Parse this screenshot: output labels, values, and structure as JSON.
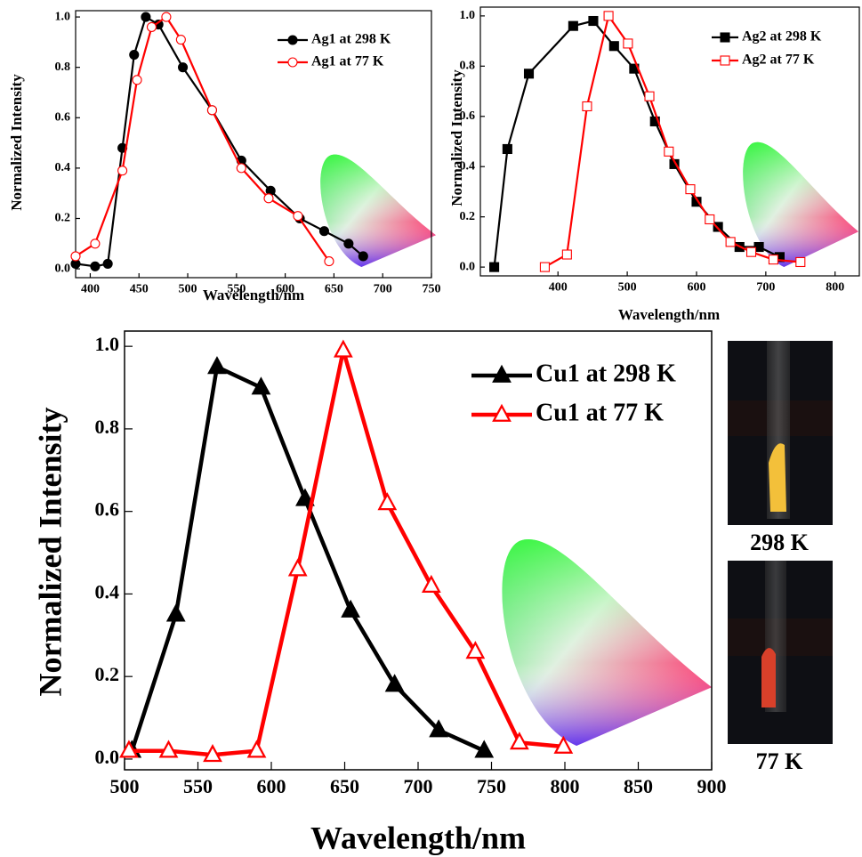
{
  "chart_data": [
    {
      "type": "line",
      "ylabel": "Normalized Intensity",
      "xlabel": "Wavelength/nm",
      "xlim": [
        385,
        750
      ],
      "xticks": [
        400,
        450,
        500,
        550,
        600,
        650,
        700,
        750
      ],
      "ylim": [
        -0.035,
        1.025
      ],
      "yticks": [
        {
          "value": 0,
          "label": "0.0"
        },
        0.2,
        0.4,
        0.6,
        0.8,
        {
          "value": 1,
          "label": "1.0"
        }
      ],
      "legend": "upper right",
      "series": [
        {
          "name": "Ag1 at 298 K",
          "color": "#000000",
          "marker": "circle",
          "marker_filled": true,
          "x": [
            385,
            405,
            418,
            433,
            445,
            457,
            470,
            495,
            525,
            555,
            585,
            615,
            640,
            665,
            680
          ],
          "values": [
            0.02,
            0.01,
            0.02,
            0.48,
            0.85,
            1.0,
            0.97,
            0.8,
            0.63,
            0.43,
            0.31,
            0.2,
            0.15,
            0.1,
            0.05
          ]
        },
        {
          "name": "Ag1 at 77 K",
          "color": "#ff0000",
          "marker": "circle",
          "marker_filled": false,
          "x": [
            385,
            405,
            433,
            448,
            463,
            478,
            493,
            525,
            555,
            583,
            613,
            645
          ],
          "values": [
            0.05,
            0.1,
            0.39,
            0.75,
            0.96,
            1.0,
            0.91,
            0.63,
            0.4,
            0.28,
            0.21,
            0.03
          ]
        }
      ]
    },
    {
      "type": "line",
      "ylabel": "Normalized Intensity",
      "xlabel": "Wavelength/nm",
      "xlim": [
        288,
        835
      ],
      "xticks": [
        400,
        500,
        600,
        700,
        800
      ],
      "ylim": [
        -0.035,
        1.035
      ],
      "yticks": [
        {
          "value": 0,
          "label": "0.0"
        },
        0.2,
        0.4,
        0.6,
        0.8,
        {
          "value": 1,
          "label": "1.0"
        }
      ],
      "legend": "upper right",
      "series": [
        {
          "name": "Ag2 at 298 K",
          "color": "#000000",
          "marker": "square",
          "marker_filled": true,
          "x": [
            308,
            327,
            358,
            422,
            451,
            481,
            510,
            540,
            568,
            600,
            631,
            662,
            690,
            720
          ],
          "values": [
            0.0,
            0.47,
            0.77,
            0.96,
            0.98,
            0.88,
            0.79,
            0.58,
            0.41,
            0.26,
            0.16,
            0.08,
            0.08,
            0.04
          ]
        },
        {
          "name": "Ag2 at 77 K",
          "color": "#ff0000",
          "marker": "square",
          "marker_filled": false,
          "x": [
            381,
            413,
            442,
            473,
            501,
            532,
            560,
            591,
            619,
            649,
            679,
            711,
            750
          ],
          "values": [
            0.0,
            0.05,
            0.64,
            1.0,
            0.89,
            0.68,
            0.46,
            0.31,
            0.19,
            0.1,
            0.06,
            0.03,
            0.02
          ]
        }
      ]
    },
    {
      "type": "line",
      "ylabel": "Normalized Intensity",
      "xlabel": "Wavelength/nm",
      "xlim": [
        500,
        900
      ],
      "xticks": [
        500,
        550,
        600,
        650,
        700,
        750,
        800,
        850,
        900
      ],
      "ylim": [
        -0.026,
        1.037
      ],
      "yticks": [
        {
          "value": 0,
          "label": "0.0"
        },
        0.2,
        0.4,
        0.6,
        0.8,
        {
          "value": 1,
          "label": "1.0"
        }
      ],
      "legend": "upper right",
      "series": [
        {
          "name": "Cu1 at 298 K",
          "color": "#000000",
          "marker": "triangle",
          "marker_filled": true,
          "x": [
            505,
            535,
            563,
            593,
            623,
            654,
            684,
            714,
            745
          ],
          "values": [
            0.02,
            0.35,
            0.95,
            0.9,
            0.63,
            0.36,
            0.18,
            0.07,
            0.02
          ]
        },
        {
          "name": "Cu1 at 77 K",
          "color": "#ff0000",
          "marker": "triangle",
          "marker_filled": false,
          "x": [
            503,
            530,
            560,
            590,
            618,
            649,
            679,
            709,
            739,
            769,
            799
          ],
          "values": [
            0.02,
            0.02,
            0.01,
            0.02,
            0.46,
            0.99,
            0.62,
            0.42,
            0.26,
            0.04,
            0.03
          ]
        }
      ]
    }
  ],
  "photo_labels": [
    "298 K",
    "77 K"
  ]
}
